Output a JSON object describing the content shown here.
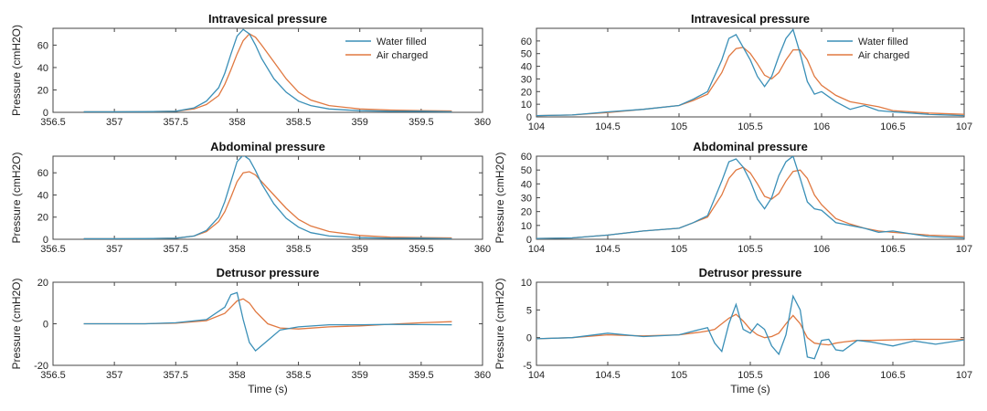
{
  "colors": {
    "water": "#3a8fb7",
    "air": "#e07840",
    "axis": "#444444"
  },
  "chart_data": [
    {
      "type": "line",
      "title": "Intravesical pressure",
      "ylabel": "Pressure (cmH2O)",
      "xlabel": "",
      "xlim": [
        356.5,
        360
      ],
      "ylim": [
        0,
        75
      ],
      "xticks": [
        356.5,
        357,
        357.5,
        358,
        358.5,
        359,
        359.5,
        360
      ],
      "yticks": [
        0,
        20,
        40,
        60
      ],
      "legend": "top-right",
      "series": [
        {
          "name": "Water filled",
          "color": "#3a8fb7",
          "x": [
            356.75,
            357.0,
            357.25,
            357.5,
            357.65,
            357.75,
            357.85,
            357.9,
            357.95,
            358.0,
            358.05,
            358.1,
            358.15,
            358.2,
            358.3,
            358.4,
            358.5,
            358.6,
            358.75,
            359.0,
            359.25,
            359.5,
            359.75
          ],
          "y": [
            0.5,
            0.5,
            0.6,
            1,
            4,
            10,
            22,
            35,
            52,
            68,
            74,
            70,
            60,
            48,
            30,
            18,
            10,
            6,
            3,
            1.5,
            1,
            1,
            0.5
          ]
        },
        {
          "name": "Air charged",
          "color": "#e07840",
          "x": [
            356.75,
            357.0,
            357.25,
            357.5,
            357.65,
            357.75,
            357.85,
            357.9,
            357.95,
            358.0,
            358.05,
            358.1,
            358.15,
            358.2,
            358.3,
            358.4,
            358.5,
            358.6,
            358.75,
            359.0,
            359.25,
            359.5,
            359.75
          ],
          "y": [
            0.5,
            0.5,
            0.6,
            1,
            3,
            7,
            15,
            25,
            38,
            52,
            64,
            70,
            67,
            60,
            45,
            30,
            18,
            11,
            6,
            3,
            2,
            1.5,
            1.2
          ]
        }
      ]
    },
    {
      "type": "line",
      "title": "Abdominal pressure",
      "ylabel": "Pressure (cmH2O)",
      "xlabel": "",
      "xlim": [
        356.5,
        360
      ],
      "ylim": [
        0,
        75
      ],
      "xticks": [
        356.5,
        357,
        357.5,
        358,
        358.5,
        359,
        359.5,
        360
      ],
      "yticks": [
        0,
        20,
        40,
        60
      ],
      "series": [
        {
          "name": "Water filled",
          "color": "#3a8fb7",
          "x": [
            356.75,
            357.0,
            357.25,
            357.5,
            357.65,
            357.75,
            357.85,
            357.9,
            357.95,
            358.0,
            358.05,
            358.1,
            358.15,
            358.2,
            358.3,
            358.4,
            358.5,
            358.6,
            358.75,
            359.0,
            359.25,
            359.5,
            359.75
          ],
          "y": [
            0.5,
            0.5,
            0.6,
            1,
            3,
            8,
            20,
            34,
            52,
            70,
            76,
            72,
            62,
            50,
            32,
            19,
            11,
            6,
            3,
            1.5,
            1,
            1,
            0.5
          ]
        },
        {
          "name": "Air charged",
          "color": "#e07840",
          "x": [
            356.75,
            357.0,
            357.25,
            357.5,
            357.65,
            357.75,
            357.85,
            357.9,
            357.95,
            358.0,
            358.05,
            358.1,
            358.15,
            358.2,
            358.3,
            358.4,
            358.5,
            358.6,
            358.75,
            359.0,
            359.25,
            359.5,
            359.75
          ],
          "y": [
            0.5,
            0.5,
            0.6,
            1,
            3,
            7,
            16,
            25,
            38,
            52,
            60,
            61,
            58,
            52,
            40,
            28,
            18,
            12,
            7,
            3.5,
            2,
            1.5,
            1.2
          ]
        }
      ]
    },
    {
      "type": "line",
      "title": "Detrusor pressure",
      "ylabel": "Pressure (cmH2O)",
      "xlabel": "Time (s)",
      "xlim": [
        356.5,
        360
      ],
      "ylim": [
        -20,
        20
      ],
      "xticks": [
        356.5,
        357,
        357.5,
        358,
        358.5,
        359,
        359.5,
        360
      ],
      "yticks": [
        -20,
        0,
        20
      ],
      "series": [
        {
          "name": "Water filled",
          "color": "#3a8fb7",
          "x": [
            356.75,
            357.0,
            357.25,
            357.5,
            357.75,
            357.9,
            357.95,
            358.0,
            358.05,
            358.1,
            358.15,
            358.25,
            358.35,
            358.5,
            358.75,
            359.0,
            359.25,
            359.5,
            359.75
          ],
          "y": [
            0,
            0,
            0,
            0.5,
            2,
            8,
            14,
            15,
            2,
            -9,
            -13,
            -8,
            -3,
            -1.5,
            -0.5,
            -0.5,
            -0.3,
            -0.4,
            -0.5
          ]
        },
        {
          "name": "Air charged",
          "color": "#e07840",
          "x": [
            356.75,
            357.0,
            357.25,
            357.5,
            357.75,
            357.9,
            357.95,
            358.0,
            358.05,
            358.1,
            358.15,
            358.25,
            358.35,
            358.5,
            358.75,
            359.0,
            359.25,
            359.5,
            359.75
          ],
          "y": [
            0,
            0,
            0,
            0.3,
            1.5,
            5,
            8,
            11,
            12,
            10,
            6,
            0,
            -2,
            -2.5,
            -1.5,
            -1,
            -0.2,
            0.5,
            1
          ]
        }
      ]
    },
    {
      "type": "line",
      "title": "Intravesical pressure",
      "ylabel": "",
      "xlabel": "",
      "xlim": [
        104,
        107
      ],
      "ylim": [
        0,
        70
      ],
      "xticks": [
        104,
        104.5,
        105,
        105.5,
        106,
        106.5,
        107
      ],
      "yticks": [
        0,
        10,
        20,
        30,
        40,
        50,
        60
      ],
      "legend": "top-right",
      "series": [
        {
          "name": "Water filled",
          "color": "#3a8fb7",
          "x": [
            104.0,
            104.25,
            104.5,
            104.75,
            105.0,
            105.1,
            105.2,
            105.3,
            105.35,
            105.4,
            105.45,
            105.5,
            105.55,
            105.6,
            105.65,
            105.7,
            105.75,
            105.8,
            105.85,
            105.9,
            105.95,
            106.0,
            106.1,
            106.2,
            106.3,
            106.4,
            106.5,
            106.75,
            107.0
          ],
          "y": [
            1,
            1.5,
            4,
            6,
            9,
            14,
            20,
            45,
            62,
            65,
            55,
            45,
            32,
            24,
            32,
            48,
            62,
            69,
            50,
            28,
            18,
            20,
            12,
            6,
            9,
            5,
            4,
            2,
            1
          ]
        },
        {
          "name": "Air charged",
          "color": "#e07840",
          "x": [
            104.0,
            104.25,
            104.5,
            104.75,
            105.0,
            105.1,
            105.2,
            105.3,
            105.35,
            105.4,
            105.45,
            105.5,
            105.55,
            105.6,
            105.65,
            105.7,
            105.75,
            105.8,
            105.85,
            105.9,
            105.95,
            106.0,
            106.1,
            106.2,
            106.3,
            106.4,
            106.5,
            106.75,
            107.0
          ],
          "y": [
            1,
            1.5,
            3.5,
            6,
            9,
            13,
            18,
            35,
            48,
            54,
            55,
            50,
            42,
            33,
            30,
            35,
            45,
            53,
            53,
            45,
            32,
            25,
            17,
            12,
            10,
            8,
            5,
            3,
            2
          ]
        }
      ]
    },
    {
      "type": "line",
      "title": "Abdominal pressure",
      "ylabel": "Pressure (cmH2O)",
      "xlabel": "",
      "xlim": [
        104,
        107
      ],
      "ylim": [
        0,
        60
      ],
      "xticks": [
        104,
        104.5,
        105,
        105.5,
        106,
        106.5,
        107
      ],
      "yticks": [
        0,
        10,
        20,
        30,
        40,
        50,
        60
      ],
      "series": [
        {
          "name": "Water filled",
          "color": "#3a8fb7",
          "x": [
            104.0,
            104.25,
            104.5,
            104.75,
            105.0,
            105.1,
            105.2,
            105.3,
            105.35,
            105.4,
            105.45,
            105.5,
            105.55,
            105.6,
            105.65,
            105.7,
            105.75,
            105.8,
            105.85,
            105.9,
            105.95,
            106.0,
            106.1,
            106.2,
            106.3,
            106.4,
            106.5,
            106.75,
            107.0
          ],
          "y": [
            0.5,
            1,
            3,
            6,
            8,
            12,
            17,
            42,
            56,
            58,
            52,
            42,
            29,
            22,
            30,
            46,
            56,
            60,
            44,
            27,
            22,
            21,
            12,
            10,
            8,
            5,
            6,
            2,
            1
          ]
        },
        {
          "name": "Air charged",
          "color": "#e07840",
          "x": [
            104.0,
            104.25,
            104.5,
            104.75,
            105.0,
            105.1,
            105.2,
            105.3,
            105.35,
            105.4,
            105.45,
            105.5,
            105.55,
            105.6,
            105.65,
            105.7,
            105.75,
            105.8,
            105.85,
            105.9,
            105.95,
            106.0,
            106.1,
            106.2,
            106.3,
            106.4,
            106.5,
            106.75,
            107.0
          ],
          "y": [
            0.5,
            1,
            3,
            6,
            8,
            12,
            16,
            32,
            44,
            50,
            52,
            48,
            40,
            31,
            29,
            33,
            42,
            49,
            50,
            44,
            32,
            25,
            15,
            11,
            8,
            6,
            5,
            3,
            2
          ]
        }
      ]
    },
    {
      "type": "line",
      "title": "Detrusor pressure",
      "ylabel": "Pressure (cmH2O)",
      "xlabel": "Time (s)",
      "xlim": [
        104,
        107
      ],
      "ylim": [
        -5,
        10
      ],
      "xticks": [
        104,
        104.5,
        105,
        105.5,
        106,
        106.5,
        107
      ],
      "yticks": [
        -5,
        0,
        5,
        10
      ],
      "series": [
        {
          "name": "Water filled",
          "color": "#3a8fb7",
          "x": [
            104.0,
            104.25,
            104.5,
            104.75,
            105.0,
            105.15,
            105.2,
            105.25,
            105.3,
            105.35,
            105.4,
            105.45,
            105.5,
            105.55,
            105.6,
            105.65,
            105.7,
            105.75,
            105.8,
            105.85,
            105.9,
            105.95,
            106.0,
            106.05,
            106.1,
            106.15,
            106.25,
            106.35,
            106.5,
            106.65,
            106.8,
            107.0
          ],
          "y": [
            -0.2,
            0,
            0.8,
            0.2,
            0.5,
            1.5,
            1.8,
            -1,
            -2.5,
            2.5,
            6,
            1.5,
            0.8,
            2.5,
            1.5,
            -1.5,
            -3,
            0.5,
            7.5,
            5,
            -3.5,
            -3.8,
            -0.5,
            -0.3,
            -2.2,
            -2.4,
            -0.5,
            -0.8,
            -1.5,
            -0.6,
            -1.2,
            -0.4
          ]
        },
        {
          "name": "Air charged",
          "color": "#e07840",
          "x": [
            104.0,
            104.25,
            104.5,
            104.75,
            105.0,
            105.15,
            105.2,
            105.25,
            105.3,
            105.35,
            105.4,
            105.45,
            105.5,
            105.55,
            105.6,
            105.65,
            105.7,
            105.75,
            105.8,
            105.85,
            105.9,
            105.95,
            106.0,
            106.05,
            106.1,
            106.15,
            106.25,
            106.35,
            106.5,
            106.65,
            106.8,
            107.0
          ],
          "y": [
            -0.2,
            0,
            0.5,
            0.3,
            0.5,
            1,
            1.2,
            1.5,
            2.5,
            3.5,
            4.2,
            3,
            1.5,
            0.5,
            0,
            0.2,
            0.8,
            2.5,
            4,
            2.5,
            0,
            -1,
            -1.2,
            -1.3,
            -1.0,
            -0.8,
            -0.5,
            -0.5,
            -0.4,
            -0.3,
            -0.3,
            -0.3
          ]
        }
      ]
    }
  ]
}
